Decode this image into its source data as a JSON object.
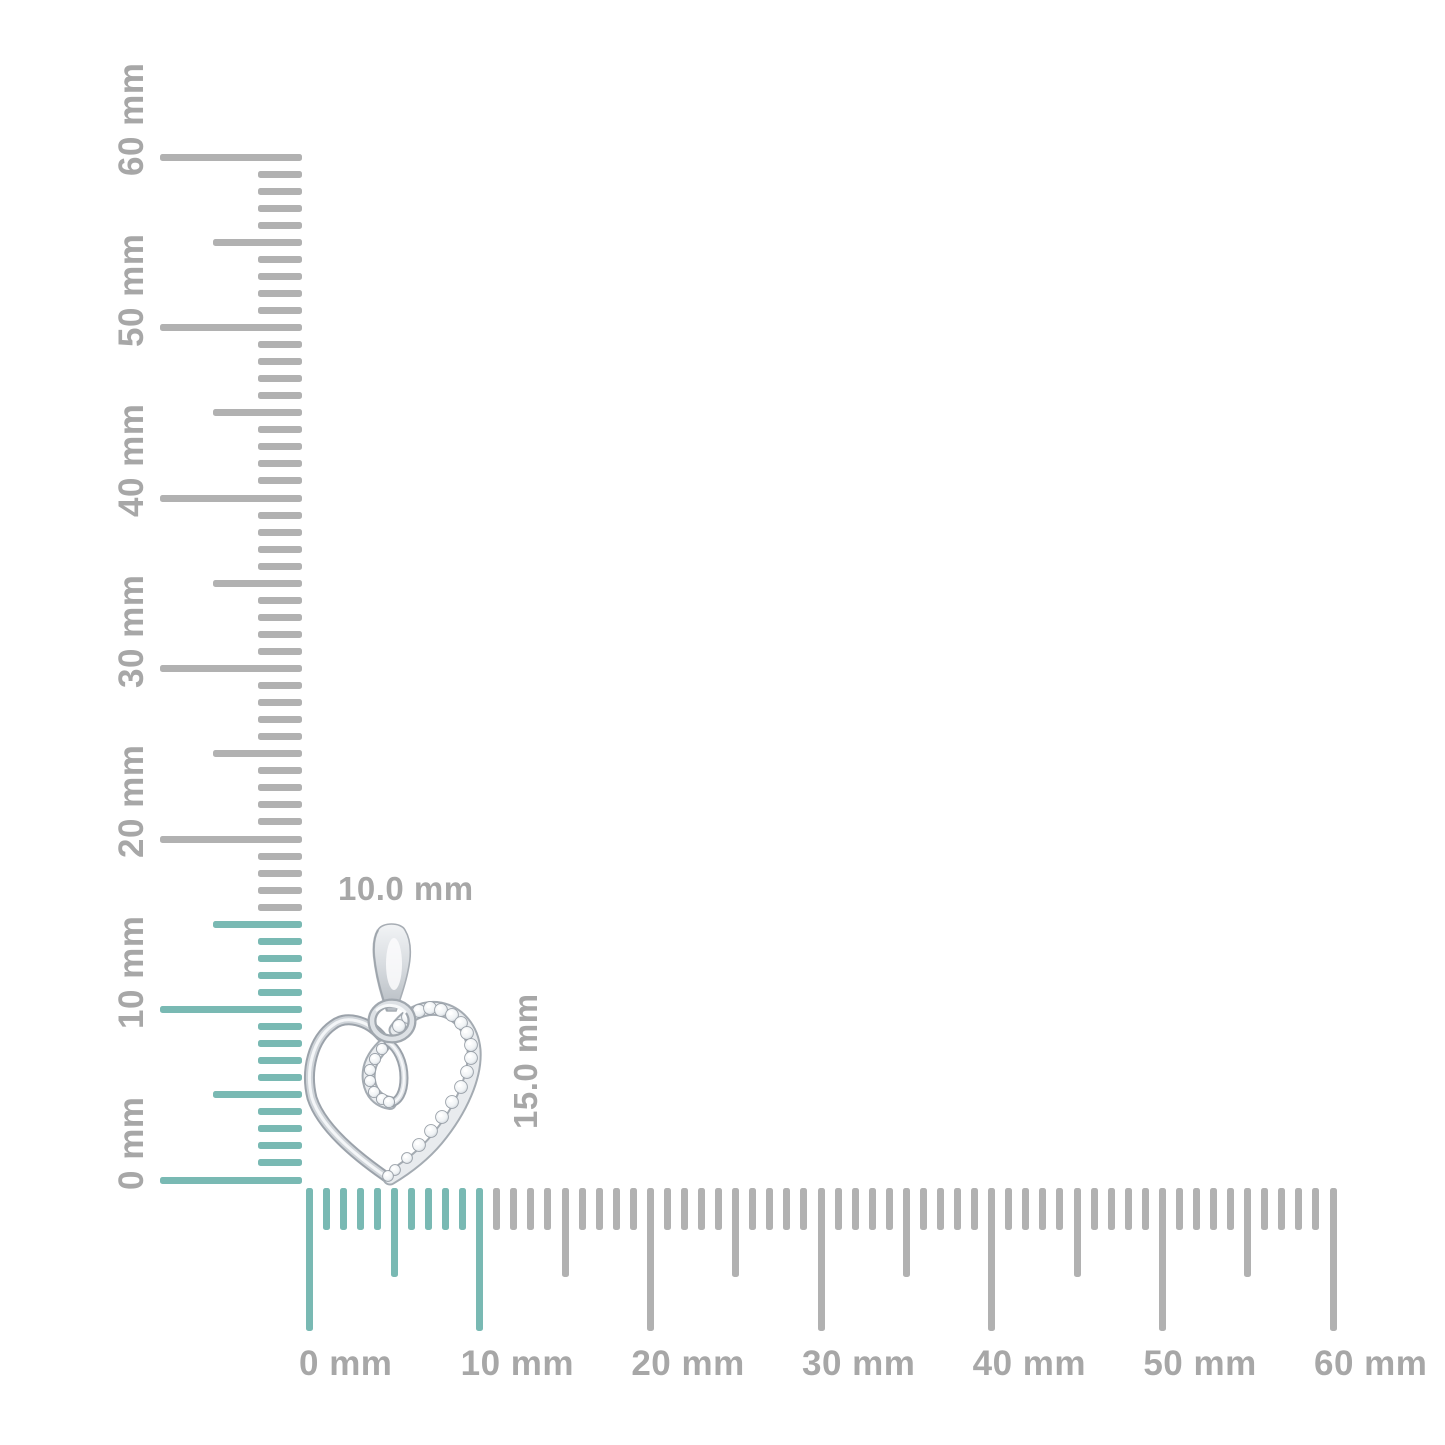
{
  "page": {
    "background_color": "#ffffff"
  },
  "size_chart": {
    "unit": "mm",
    "tick_color": "#b1b1b1",
    "highlight_tick_color": "#79b9b3",
    "label_color": "#a7a7a7",
    "vertical_ruler": {
      "max_mm": 60,
      "highlight_to_mm": 15,
      "labels": [
        {
          "mm": 0,
          "text": "0 mm"
        },
        {
          "mm": 10,
          "text": "10 mm"
        },
        {
          "mm": 20,
          "text": "20 mm"
        },
        {
          "mm": 30,
          "text": "30 mm"
        },
        {
          "mm": 40,
          "text": "40 mm"
        },
        {
          "mm": 50,
          "text": "50 mm"
        },
        {
          "mm": 60,
          "text": "60 mm"
        }
      ]
    },
    "horizontal_ruler": {
      "max_mm": 60,
      "highlight_to_mm": 10,
      "labels": [
        {
          "mm": 0,
          "text": "0 mm"
        },
        {
          "mm": 10,
          "text": "10 mm"
        },
        {
          "mm": 20,
          "text": "20 mm"
        },
        {
          "mm": 30,
          "text": "30 mm"
        },
        {
          "mm": 40,
          "text": "40 mm"
        },
        {
          "mm": 50,
          "text": "50 mm"
        },
        {
          "mm": 60,
          "text": "60 mm"
        }
      ]
    }
  },
  "pendant": {
    "description": "white-gold heart pendant with pave diamonds and looped ribbon design",
    "width_label": "10.0 mm",
    "height_label": "15.0 mm",
    "metal_color": "#c7ccd2",
    "metal_edge_color": "#9ba2aa",
    "stone_fill_color": "#ffffff",
    "stone_edge_color": "#99a0a8"
  }
}
